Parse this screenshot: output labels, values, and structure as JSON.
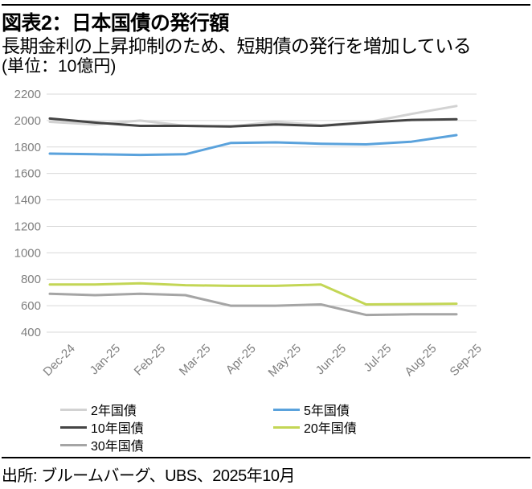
{
  "header": {
    "title": "図表2：日本国債の発行額",
    "subtitle": "長期金利の上昇抑制のため、短期債の発行を増加している",
    "unit_label": "(単位：10億円)"
  },
  "chart_data": {
    "type": "line",
    "title": "図表2：日本国債の発行額",
    "subtitle": "長期金利の上昇抑制のため、短期債の発行を増加している",
    "ylabel": "10億円",
    "categories": [
      "Dec-24",
      "Jan-25",
      "Feb-25",
      "Mar-25",
      "Apr-25",
      "May-25",
      "Jun-25",
      "Jul-25",
      "Aug-25",
      "Sep-25"
    ],
    "series": [
      {
        "name": "2年国債",
        "color": "#d2d2d2",
        "values": [
          1990,
          1970,
          2000,
          1960,
          1955,
          1990,
          1965,
          1985,
          2050,
          2110
        ]
      },
      {
        "name": "5年国債",
        "color": "#5aa2dc",
        "values": [
          1750,
          1745,
          1740,
          1745,
          1830,
          1835,
          1825,
          1820,
          1840,
          1890
        ]
      },
      {
        "name": "10年国債",
        "color": "#454545",
        "values": [
          2015,
          1985,
          1960,
          1960,
          1955,
          1970,
          1960,
          1985,
          2005,
          2010
        ]
      },
      {
        "name": "20年国債",
        "color": "#c3d655",
        "values": [
          760,
          760,
          770,
          755,
          750,
          750,
          760,
          610,
          612,
          615
        ]
      },
      {
        "name": "30年国債",
        "color": "#a5a5a5",
        "values": [
          690,
          680,
          690,
          680,
          600,
          600,
          610,
          530,
          535,
          535
        ]
      }
    ],
    "ylim": [
      400,
      2200
    ],
    "ytick_step": 200,
    "grid": "horizontal-only",
    "grid_color": "#d9d9d9",
    "tick_label_color": "#7f7f7f",
    "legend_position": "bottom",
    "legend_columns": [
      [
        "2年国債",
        "10年国債",
        "30年国債"
      ],
      [
        "5年国債",
        "20年国債"
      ]
    ]
  },
  "footer": {
    "source": "出所: ブルームバーグ、UBS、2025年10月"
  }
}
